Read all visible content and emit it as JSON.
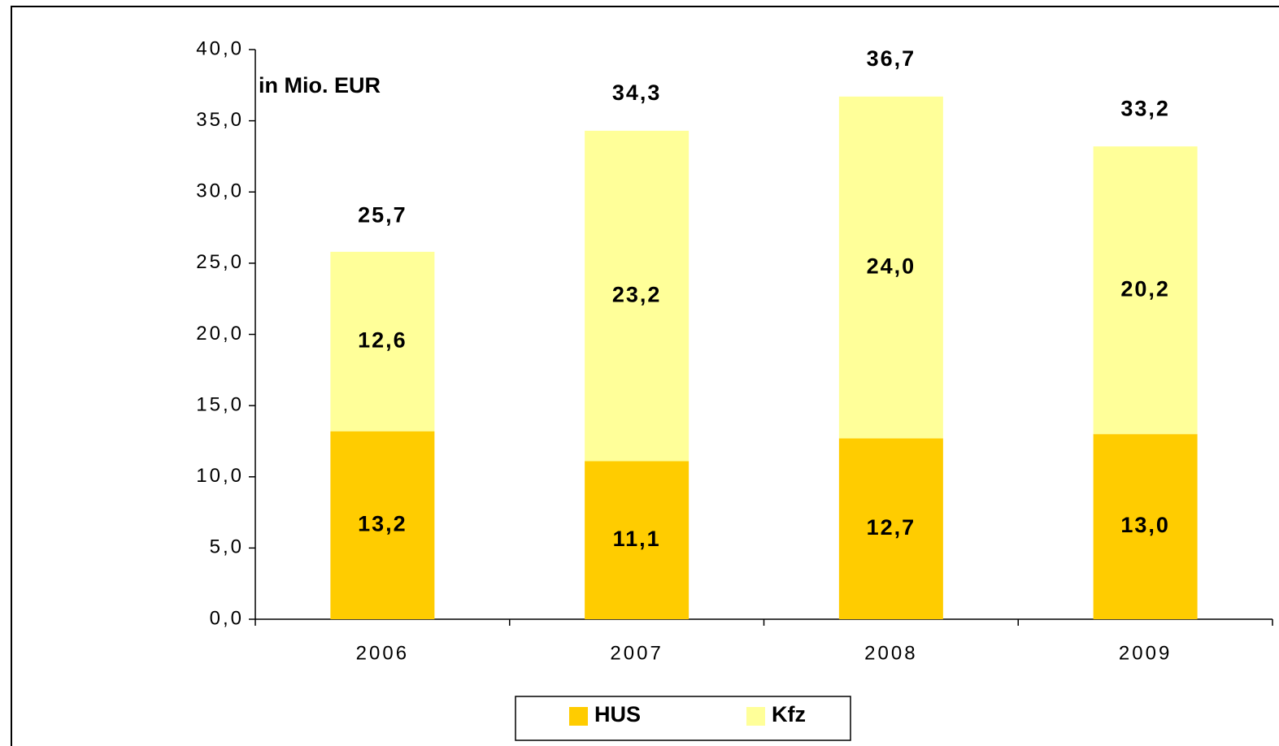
{
  "chart_data": {
    "type": "stacked_bar",
    "annotation": "in Mio. EUR",
    "categories": [
      "2006",
      "2007",
      "2008",
      "2009"
    ],
    "series": [
      {
        "name": "HUS",
        "color": "#ffcc00",
        "values": [
          13.2,
          11.1,
          12.7,
          13.0
        ],
        "value_labels": [
          "13,2",
          "11,1",
          "12,7",
          "13,0"
        ]
      },
      {
        "name": "Kfz",
        "color": "#ffff99",
        "values": [
          12.6,
          23.2,
          24.0,
          20.2
        ],
        "value_labels": [
          "12,6",
          "23,2",
          "24,0",
          "20,2"
        ]
      }
    ],
    "totals": [
      25.7,
      34.3,
      36.7,
      33.2
    ],
    "total_labels": [
      "25,7",
      "34,3",
      "36,7",
      "33,2"
    ],
    "ylim": [
      0,
      40
    ],
    "yticks": [
      {
        "value": 0,
        "label": "0,0"
      },
      {
        "value": 5,
        "label": "5,0"
      },
      {
        "value": 10,
        "label": "10,0"
      },
      {
        "value": 15,
        "label": "15,0"
      },
      {
        "value": 20,
        "label": "20,0"
      },
      {
        "value": 25,
        "label": "25,0"
      },
      {
        "value": 30,
        "label": "30,0"
      },
      {
        "value": 35,
        "label": "35,0"
      },
      {
        "value": 40,
        "label": "40,0"
      }
    ],
    "legend": "bottom"
  }
}
